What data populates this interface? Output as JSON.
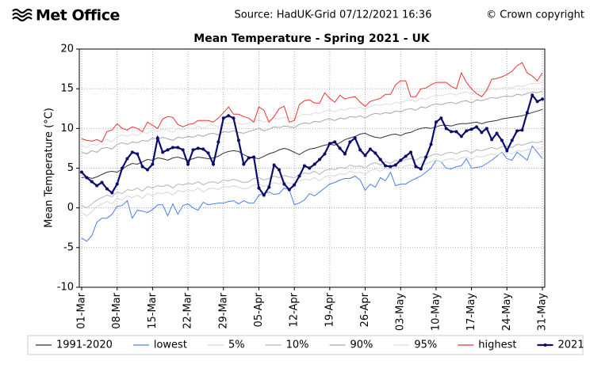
{
  "header": {
    "logo": "Met Office",
    "source": "Source: HadUK-Grid 07/12/2021 16:36",
    "copyright": "© Crown copyright"
  },
  "chart_data": {
    "type": "line",
    "title": "Mean Temperature - Spring 2021 - UK",
    "y_label": "Mean Temperature (°C)",
    "categories": [
      "01-Mar",
      null,
      null,
      null,
      null,
      null,
      null,
      "08-Mar",
      null,
      null,
      null,
      null,
      null,
      null,
      "15-Mar",
      null,
      null,
      null,
      null,
      null,
      null,
      "22-Mar",
      null,
      null,
      null,
      null,
      null,
      null,
      "29-Mar",
      null,
      null,
      null,
      null,
      null,
      null,
      "05-Apr",
      null,
      null,
      null,
      null,
      null,
      null,
      "12-Apr",
      null,
      null,
      null,
      null,
      null,
      null,
      "19-Apr",
      null,
      null,
      null,
      null,
      null,
      null,
      "26-Apr",
      null,
      null,
      null,
      null,
      null,
      null,
      "03-May",
      null,
      null,
      null,
      null,
      null,
      null,
      "10-May",
      null,
      null,
      null,
      null,
      null,
      null,
      "17-May",
      null,
      null,
      null,
      null,
      null,
      null,
      "24-May",
      null,
      null,
      null,
      null,
      null,
      null,
      "31-May"
    ],
    "ylim": [
      -10,
      20
    ],
    "yticks": [
      -10,
      -5,
      0,
      5,
      10,
      15,
      20
    ],
    "grid": true,
    "legend": "bottom",
    "series": [
      {
        "name": "1991-2020",
        "color": "#333333",
        "values": [
          3.8,
          3.9,
          3.7,
          3.9,
          4.2,
          4.5,
          4.6,
          4.5,
          4.9,
          5.3,
          5.6,
          5.5,
          5.8,
          6.1,
          6.0,
          6.3,
          6.2,
          6.0,
          6.3,
          6.4,
          6.2,
          6.0,
          6.2,
          6.4,
          6.3,
          6.2,
          6.3,
          6.5,
          6.9,
          7.1,
          7.2,
          7.1,
          6.7,
          6.4,
          6.3,
          6.2,
          6.5,
          6.8,
          7.0,
          7.3,
          7.5,
          7.3,
          7.0,
          6.7,
          7.1,
          7.4,
          7.5,
          7.7,
          7.9,
          8.0,
          7.9,
          8.2,
          8.6,
          8.8,
          9.0,
          9.3,
          9.4,
          9.1,
          8.9,
          8.8,
          9.0,
          9.2,
          9.3,
          9.1,
          9.4,
          9.5,
          9.8,
          10.0,
          10.1,
          10.0,
          10.2,
          10.4,
          10.4,
          10.3,
          10.5,
          10.6,
          10.6,
          10.7,
          10.8,
          10.6,
          10.8,
          10.9,
          11.0,
          11.2,
          11.3,
          11.4,
          11.5,
          11.6,
          11.8,
          12.0,
          12.2,
          12.4
        ]
      },
      {
        "name": "lowest",
        "color": "#4a7ff0",
        "values": [
          -3.8,
          -4.2,
          -3.5,
          -1.8,
          -1.3,
          -1.3,
          -0.8,
          0.2,
          0.3,
          0.9,
          -1.3,
          -0.3,
          -0.4,
          -0.6,
          -0.2,
          0.4,
          0.4,
          -1.0,
          0.5,
          -0.8,
          0.3,
          0.5,
          0.0,
          -0.3,
          0.7,
          0.4,
          0.5,
          0.6,
          0.6,
          0.8,
          0.9,
          0.5,
          0.9,
          0.6,
          0.6,
          1.6,
          1.8,
          2.0,
          1.7,
          1.8,
          2.5,
          2.3,
          0.4,
          0.6,
          1.0,
          1.8,
          1.5,
          2.0,
          2.5,
          3.0,
          3.2,
          3.5,
          3.7,
          3.7,
          4.0,
          3.5,
          2.2,
          3.0,
          2.6,
          3.8,
          3.4,
          4.5,
          2.8,
          3.0,
          3.0,
          3.4,
          3.7,
          4.0,
          4.5,
          5.0,
          6.0,
          5.8,
          5.0,
          4.9,
          5.2,
          5.3,
          6.2,
          5.0,
          5.1,
          5.2,
          5.6,
          6.0,
          6.5,
          7.0,
          6.2,
          6.0,
          7.0,
          6.5,
          6.0,
          7.8,
          7.0,
          6.2
        ]
      },
      {
        "name": "5%",
        "color": "#d6d6d6",
        "values": [
          -0.6,
          -1.0,
          -0.5,
          0.2,
          0.5,
          0.8,
          0.5,
          1.2,
          1.0,
          1.5,
          1.3,
          1.6,
          1.2,
          1.8,
          1.5,
          1.9,
          1.8,
          2.0,
          1.6,
          2.2,
          2.0,
          2.3,
          2.1,
          2.5,
          2.0,
          2.4,
          2.5,
          2.3,
          2.7,
          2.6,
          2.8,
          2.6,
          2.4,
          2.5,
          2.9,
          3.0,
          2.7,
          2.9,
          3.2,
          3.0,
          3.3,
          3.1,
          3.0,
          3.4,
          3.6,
          3.5,
          3.8,
          3.4,
          3.9,
          4.1,
          4.0,
          4.3,
          4.2,
          4.6,
          4.4,
          4.5,
          4.2,
          4.7,
          4.9,
          4.6,
          5.0,
          4.8,
          5.2,
          5.0,
          5.3,
          5.4,
          5.2,
          5.6,
          5.5,
          5.8,
          6.0,
          5.8,
          6.1,
          6.2,
          6.0,
          6.3,
          6.4,
          6.1,
          6.5,
          6.4,
          6.6,
          6.8,
          6.6,
          6.9,
          7.0,
          6.8,
          7.2,
          7.1,
          7.3,
          7.5,
          7.4,
          7.6
        ]
      },
      {
        "name": "10%",
        "color": "#b4b4b4",
        "values": [
          0.3,
          0.0,
          0.5,
          1.0,
          1.3,
          1.6,
          1.4,
          2.0,
          1.8,
          2.3,
          2.2,
          2.5,
          2.1,
          2.7,
          2.5,
          2.8,
          2.7,
          2.9,
          2.5,
          3.0,
          2.9,
          3.1,
          3.0,
          3.3,
          2.9,
          3.2,
          3.3,
          3.1,
          3.5,
          3.4,
          3.6,
          3.4,
          3.2,
          3.3,
          3.7,
          3.8,
          3.5,
          3.7,
          4.0,
          3.8,
          4.1,
          3.9,
          3.8,
          4.2,
          4.4,
          4.3,
          4.6,
          4.2,
          4.7,
          4.9,
          4.8,
          5.1,
          5.0,
          5.4,
          5.2,
          5.3,
          5.0,
          5.5,
          5.7,
          5.4,
          5.8,
          5.6,
          6.0,
          5.8,
          6.1,
          6.2,
          6.0,
          6.4,
          6.3,
          6.6,
          6.8,
          6.6,
          6.9,
          7.0,
          6.8,
          7.1,
          7.2,
          6.9,
          7.3,
          7.2,
          7.4,
          7.6,
          7.4,
          7.7,
          7.8,
          7.6,
          8.0,
          7.9,
          8.1,
          8.3,
          8.2,
          8.4
        ]
      },
      {
        "name": "90%",
        "color": "#a6a6a6",
        "values": [
          7.0,
          6.8,
          7.2,
          7.0,
          7.5,
          7.6,
          7.4,
          8.0,
          8.2,
          8.0,
          8.3,
          8.2,
          8.5,
          8.4,
          8.8,
          8.6,
          8.9,
          8.7,
          8.5,
          8.9,
          8.8,
          9.0,
          8.9,
          9.2,
          9.0,
          9.3,
          9.4,
          9.2,
          9.6,
          9.5,
          9.7,
          9.5,
          9.4,
          9.6,
          9.8,
          10.0,
          9.7,
          9.9,
          10.2,
          10.1,
          10.3,
          10.2,
          10.1,
          10.5,
          10.7,
          10.6,
          10.9,
          10.8,
          11.1,
          11.2,
          11.0,
          11.3,
          11.2,
          11.5,
          11.4,
          11.6,
          11.3,
          11.7,
          11.9,
          11.8,
          12.0,
          11.9,
          12.2,
          12.1,
          12.4,
          12.5,
          12.3,
          12.7,
          12.6,
          12.9,
          13.1,
          13.0,
          13.2,
          13.3,
          13.1,
          13.4,
          13.5,
          13.2,
          13.6,
          13.5,
          13.7,
          13.9,
          13.8,
          14.0,
          14.1,
          14.0,
          14.3,
          14.2,
          14.4,
          14.6,
          14.5,
          14.7
        ]
      },
      {
        "name": "95%",
        "color": "#dcdcdc",
        "values": [
          7.9,
          7.6,
          8.0,
          7.9,
          8.4,
          8.6,
          8.3,
          9.0,
          9.2,
          9.0,
          9.3,
          9.1,
          9.5,
          9.4,
          9.8,
          9.6,
          9.9,
          9.8,
          9.5,
          10.0,
          9.8,
          10.1,
          9.9,
          10.3,
          10.0,
          10.4,
          10.5,
          10.2,
          10.7,
          10.6,
          10.8,
          10.6,
          10.5,
          10.7,
          10.9,
          11.1,
          10.8,
          11.0,
          11.3,
          11.2,
          11.4,
          11.3,
          11.2,
          11.6,
          11.8,
          11.7,
          12.0,
          11.9,
          12.2,
          12.3,
          12.1,
          12.4,
          12.3,
          12.6,
          12.5,
          12.7,
          12.4,
          12.8,
          13.0,
          12.9,
          13.1,
          13.0,
          13.3,
          13.2,
          13.5,
          13.6,
          13.4,
          13.8,
          13.7,
          14.0,
          14.2,
          14.1,
          14.3,
          14.4,
          14.2,
          14.5,
          14.6,
          14.3,
          14.7,
          14.6,
          14.8,
          15.0,
          14.9,
          15.1,
          15.2,
          15.1,
          15.4,
          15.3,
          15.5,
          15.7,
          15.6,
          15.8
        ]
      },
      {
        "name": "highest",
        "color": "#f03232",
        "values": [
          8.7,
          8.5,
          8.4,
          8.6,
          8.3,
          9.6,
          9.8,
          10.6,
          10.0,
          9.8,
          10.2,
          10.0,
          9.6,
          10.8,
          10.4,
          10.0,
          11.2,
          11.5,
          11.4,
          10.5,
          10.2,
          10.5,
          10.6,
          11.0,
          11.0,
          11.0,
          10.8,
          11.3,
          12.0,
          12.7,
          11.8,
          11.8,
          11.5,
          11.3,
          10.8,
          12.7,
          12.3,
          10.8,
          11.5,
          12.5,
          12.8,
          10.8,
          11.0,
          13.0,
          13.5,
          13.6,
          13.2,
          13.2,
          14.5,
          13.8,
          13.3,
          14.2,
          13.7,
          13.9,
          14.0,
          13.3,
          12.8,
          13.4,
          13.6,
          13.8,
          14.3,
          14.3,
          15.5,
          16.0,
          16.0,
          14.0,
          14.0,
          15.0,
          15.1,
          15.5,
          15.8,
          15.8,
          15.8,
          15.3,
          15.0,
          17.0,
          15.8,
          15.0,
          14.4,
          14.0,
          14.8,
          16.2,
          16.3,
          16.5,
          16.8,
          17.2,
          17.9,
          18.3,
          17.0,
          16.6,
          16.0,
          17.0
        ]
      },
      {
        "name": "2021",
        "color": "#0c0c70",
        "marker": "dot",
        "values": [
          4.5,
          3.8,
          3.3,
          2.8,
          3.2,
          2.4,
          1.9,
          3.0,
          5.0,
          6.2,
          7.0,
          6.8,
          5.2,
          4.8,
          5.5,
          8.8,
          7.0,
          7.3,
          7.6,
          7.6,
          7.3,
          5.5,
          7.3,
          7.5,
          7.4,
          6.9,
          5.5,
          8.3,
          11.3,
          11.6,
          11.3,
          8.5,
          5.5,
          6.3,
          6.4,
          2.5,
          1.6,
          2.6,
          5.4,
          4.8,
          3.0,
          2.3,
          2.9,
          4.0,
          5.3,
          5.0,
          5.5,
          6.1,
          6.8,
          8.1,
          8.3,
          7.5,
          6.8,
          8.3,
          8.8,
          7.3,
          6.6,
          7.4,
          6.9,
          6.1,
          5.3,
          5.2,
          5.4,
          6.0,
          6.5,
          7.0,
          5.2,
          4.9,
          6.4,
          8.0,
          10.8,
          11.3,
          10.0,
          9.6,
          9.6,
          9.0,
          9.7,
          9.9,
          10.2,
          9.5,
          10.0,
          8.6,
          9.4,
          8.5,
          7.2,
          8.5,
          9.7,
          9.8,
          12.0,
          14.2,
          13.4,
          13.7
        ]
      }
    ]
  }
}
